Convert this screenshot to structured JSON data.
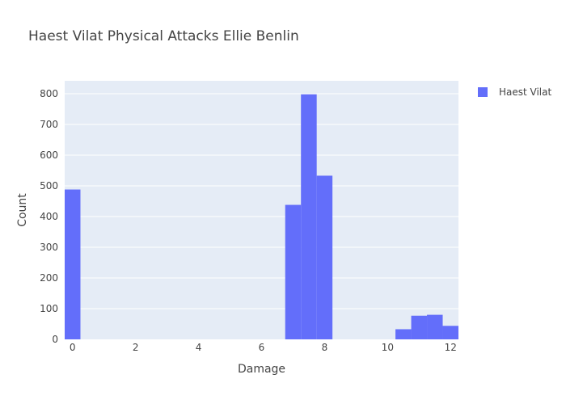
{
  "chart_data": {
    "type": "bar",
    "title": "Haest Vilat Physical Attacks Ellie Benlin",
    "xlabel": "Damage",
    "ylabel": "Count",
    "xlim": [
      -0.25,
      12.25
    ],
    "ylim": [
      0,
      842
    ],
    "x_ticks": [
      0,
      2,
      4,
      6,
      8,
      10,
      12
    ],
    "y_ticks": [
      0,
      100,
      200,
      300,
      400,
      500,
      600,
      700,
      800
    ],
    "bin_width": 0.5,
    "series": [
      {
        "name": "Haest Vilat",
        "color": "#636efa",
        "bins": [
          {
            "start": -0.25,
            "end": 0.25,
            "count": 488
          },
          {
            "start": 6.75,
            "end": 7.25,
            "count": 438
          },
          {
            "start": 7.25,
            "end": 7.75,
            "count": 798
          },
          {
            "start": 7.75,
            "end": 8.25,
            "count": 533
          },
          {
            "start": 10.25,
            "end": 10.75,
            "count": 33
          },
          {
            "start": 10.75,
            "end": 11.25,
            "count": 77
          },
          {
            "start": 11.25,
            "end": 11.75,
            "count": 80
          },
          {
            "start": 11.75,
            "end": 12.25,
            "count": 44
          }
        ]
      }
    ],
    "grid": true,
    "legend": "top-right",
    "colors": {
      "plot_bg": "#e5ecf6",
      "grid": "#ffffff",
      "bar": "#636efa"
    }
  }
}
